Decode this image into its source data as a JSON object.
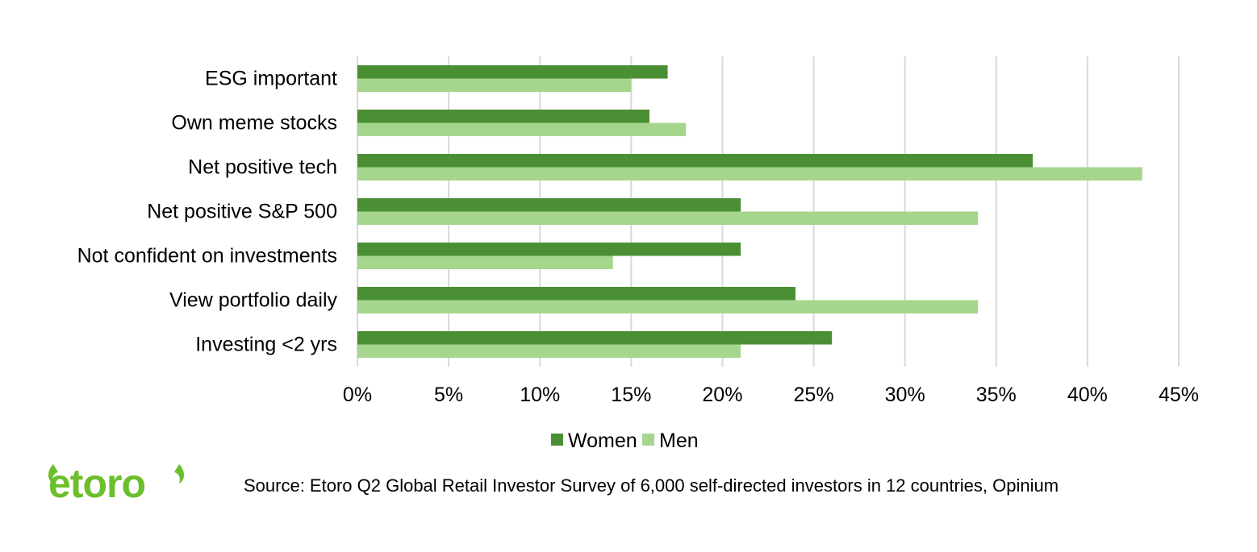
{
  "colors": {
    "women": "#4b8f35",
    "men": "#a6d68d",
    "grid": "#d9d9d9",
    "logo": "#6cbf2c"
  },
  "chart_data": {
    "type": "bar",
    "orientation": "horizontal",
    "categories": [
      "ESG important",
      "Own meme stocks",
      "Net positive tech",
      "Net positive S&P 500",
      "Not confident on investments",
      "View portfolio daily",
      "Investing <2 yrs"
    ],
    "series": [
      {
        "name": "Women",
        "values": [
          17,
          16,
          37,
          21,
          21,
          24,
          26
        ]
      },
      {
        "name": "Men",
        "values": [
          15,
          18,
          43,
          34,
          14,
          34,
          21
        ]
      }
    ],
    "xlim": [
      0,
      45
    ],
    "xticks": [
      0,
      5,
      10,
      15,
      20,
      25,
      30,
      35,
      40,
      45
    ],
    "xtick_labels": [
      "0%",
      "5%",
      "10%",
      "15%",
      "20%",
      "25%",
      "30%",
      "35%",
      "40%",
      "45%"
    ],
    "value_unit": "percent",
    "grid": "vertical",
    "legend_position": "bottom",
    "title": "",
    "xlabel": "",
    "ylabel": ""
  },
  "source_note": "Source: Etoro Q2 Global Retail Investor Survey of 6,000 self-directed investors in 12 countries, Opinium",
  "logo": {
    "text": "etoro",
    "icon": "bull-horns-icon"
  }
}
